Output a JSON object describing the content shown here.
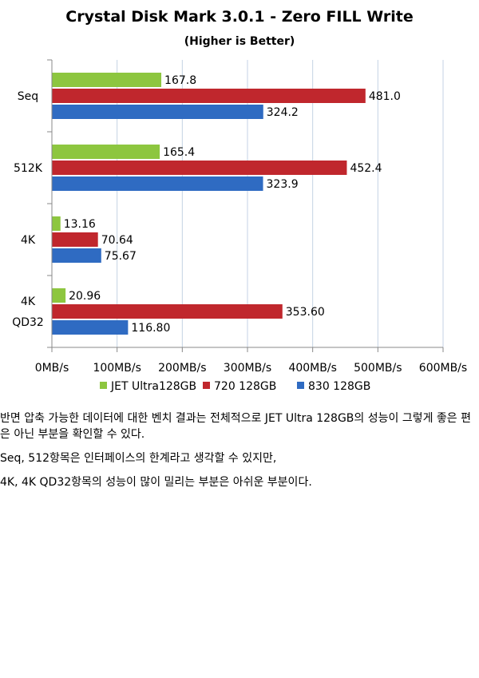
{
  "chart_data": {
    "type": "bar",
    "orientation": "horizontal",
    "title": "Crystal Disk Mark 3.0.1 - Zero FILL Write",
    "subtitle": "(Higher is Better)",
    "categories": [
      [
        "Seq"
      ],
      [
        "512K"
      ],
      [
        "4K"
      ],
      [
        "4K",
        "QD32"
      ]
    ],
    "series": [
      {
        "name": "JET Ultra128GB",
        "color": "#8DC63F",
        "values": [
          167.8,
          165.4,
          13.16,
          20.96
        ],
        "labels": [
          "167.8",
          "165.4",
          "13.16",
          "20.96"
        ]
      },
      {
        "name": "720 128GB",
        "color": "#C0272D",
        "values": [
          481.0,
          452.4,
          70.64,
          353.6
        ],
        "labels": [
          "481.0",
          "452.4",
          "70.64",
          "353.60"
        ]
      },
      {
        "name": "830 128GB",
        "color": "#2F6BC2",
        "values": [
          324.2,
          323.9,
          75.67,
          116.8
        ],
        "labels": [
          "324.2",
          "323.9",
          "75.67",
          "116.80"
        ]
      }
    ],
    "xlim": [
      0,
      600
    ],
    "xticks": [
      0,
      100,
      200,
      300,
      400,
      500,
      600
    ],
    "xtick_labels": [
      "0MB/s",
      "100MB/s",
      "200MB/s",
      "300MB/s",
      "400MB/s",
      "500MB/s",
      "600MB/s"
    ],
    "grid": true,
    "legend": "bottom"
  },
  "body_text": [
    "반면 압축 가능한 데이터에 대한 벤치 결과는 전체적으로 JET Ultra 128GB의 성능이 그렇게 좋은 편은 아닌 부분을 확인할 수 있다.",
    "Seq, 512항목은 인터페이스의 한계라고 생각할 수 있지만,",
    "4K, 4K QD32항목의 성능이 많이 밀리는 부분은 아쉬운 부분이다."
  ]
}
